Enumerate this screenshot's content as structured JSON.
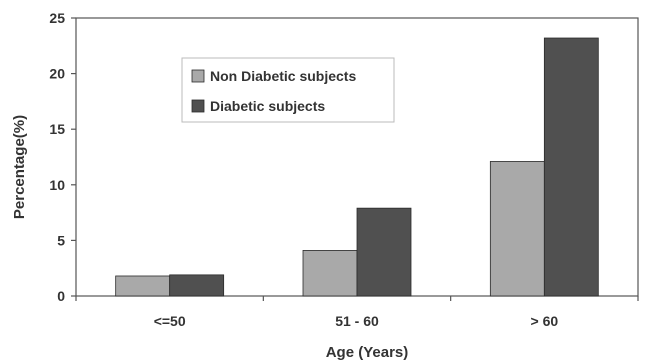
{
  "chart_data": {
    "type": "bar",
    "title": "",
    "xlabel": "Age (Years)",
    "ylabel": "Percentage(%)",
    "categories": [
      "<=50",
      "51 - 60",
      "> 60"
    ],
    "series": [
      {
        "name": "Non Diabetic subjects",
        "values": [
          1.8,
          4.1,
          12.1
        ],
        "color": "#a9a9a9"
      },
      {
        "name": "Diabetic subjects",
        "values": [
          1.9,
          7.9,
          23.2
        ],
        "color": "#505050"
      }
    ],
    "ylim": [
      0,
      25
    ],
    "yticks": [
      0,
      5,
      10,
      15,
      20,
      25
    ],
    "grid": false,
    "legend_position": "top-left"
  }
}
